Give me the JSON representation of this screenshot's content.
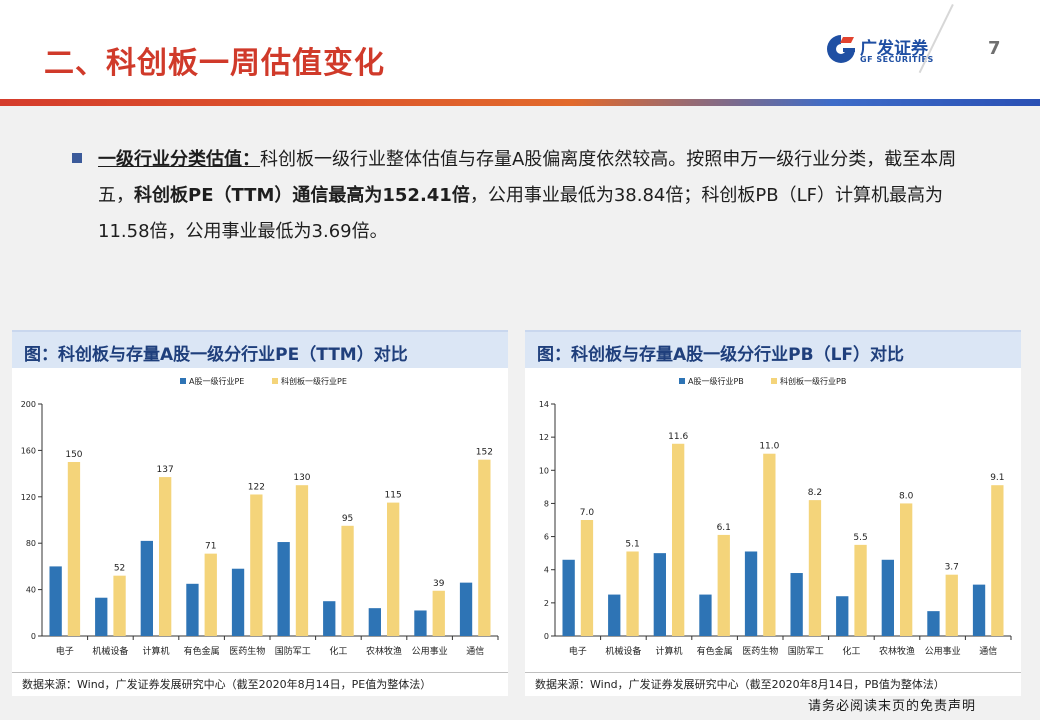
{
  "header": {
    "title": "二、科创板一周估值变化",
    "logo_cn": "广发证券",
    "logo_en": "GF SECURITIES",
    "page_number": "7"
  },
  "bullet": {
    "keyword": "一级行业分类估值：",
    "text1": "科创板一级行业整体估值与存量A股偏离度依然较高。按照申万一级行业分类，截至本周五，",
    "bold1": "科创板PE（TTM）通信最高为152.41倍",
    "text2": "，公用事业最低为38.84倍；科创板PB（LF）计算机最高为11.58倍，公用事业最低为3.69倍。"
  },
  "colors": {
    "series_a": "#2e74b5",
    "series_star": "#f4d47a",
    "title_red": "#d03a2a",
    "panel_title_bg": "#dbe6f5"
  },
  "charts": [
    {
      "panel_title": "图：科创板与存量A股一级分行业PE（TTM）对比",
      "source": "数据来源：Wind，广发证券发展研究中心（截至2020年8月14日，PE值为整体法）",
      "chart_data": {
        "type": "bar",
        "categories": [
          "电子",
          "机械设备",
          "计算机",
          "有色金属",
          "医药生物",
          "国防军工",
          "化工",
          "农林牧渔",
          "公用事业",
          "通信"
        ],
        "series": [
          {
            "name": "A股一级行业PE",
            "values": [
              60,
              33,
              82,
              45,
              58,
              81,
              30,
              24,
              22,
              46
            ],
            "labels": [
              "",
              "",
              "",
              "",
              "",
              "",
              "",
              "",
              "",
              ""
            ]
          },
          {
            "name": "科创板一级行业PE",
            "values": [
              150,
              52,
              137,
              71,
              122,
              130,
              95,
              115,
              39,
              152
            ],
            "labels": [
              "150",
              "52",
              "137",
              "71",
              "122",
              "130",
              "95",
              "115",
              "39",
              "152"
            ]
          }
        ],
        "ylim": [
          0,
          200
        ],
        "yticks": [
          0,
          40,
          80,
          120,
          160,
          200
        ],
        "legend": "top"
      }
    },
    {
      "panel_title": "图：科创板与存量A股一级分行业PB（LF）对比",
      "source": "数据来源：Wind，广发证券发展研究中心（截至2020年8月14日，PB值为整体法）",
      "chart_data": {
        "type": "bar",
        "categories": [
          "电子",
          "机械设备",
          "计算机",
          "有色金属",
          "医药生物",
          "国防军工",
          "化工",
          "农林牧渔",
          "公用事业",
          "通信"
        ],
        "series": [
          {
            "name": "A股一级行业PB",
            "values": [
              4.6,
              2.5,
              5.0,
              2.5,
              5.1,
              3.8,
              2.4,
              4.6,
              1.5,
              3.1
            ],
            "labels": [
              "",
              "",
              "",
              "",
              "",
              "",
              "",
              "",
              "",
              ""
            ]
          },
          {
            "name": "科创板一级行业PB",
            "values": [
              7.0,
              5.1,
              11.6,
              6.1,
              11.0,
              8.2,
              5.5,
              8.0,
              3.7,
              9.1
            ],
            "labels": [
              "7.0",
              "5.1",
              "11.6",
              "6.1",
              "11.0",
              "8.2",
              "5.5",
              "8.0",
              "3.7",
              "9.1"
            ]
          }
        ],
        "ylim": [
          0,
          14
        ],
        "yticks": [
          0,
          2,
          4,
          6,
          8,
          10,
          12,
          14
        ],
        "legend": "top"
      }
    }
  ],
  "footer": {
    "disclaimer": "请务必阅读末页的免责声明"
  }
}
